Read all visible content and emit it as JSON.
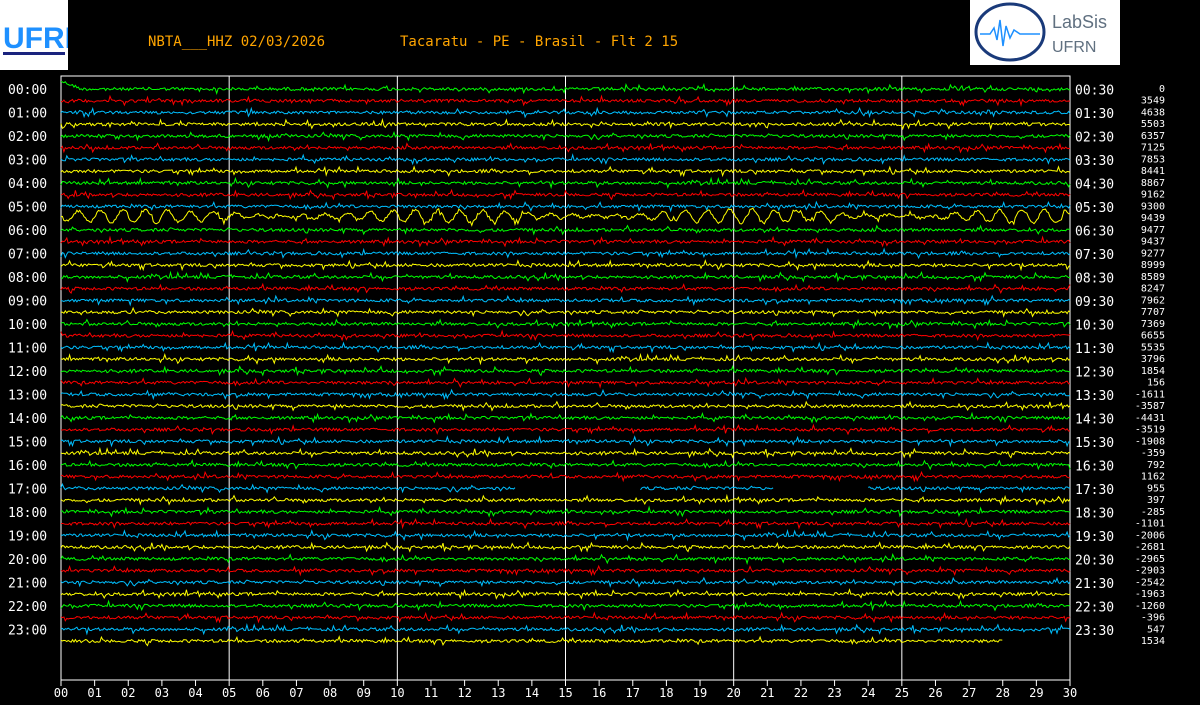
{
  "header": {
    "station": "NBTA___HHZ 02/03/2026",
    "location": "Tacaratu - PE - Brasil - Flt 2 15",
    "logo_left_text": "UFRN",
    "logo_right_text": [
      "LabSis",
      "UFRN"
    ]
  },
  "colors": {
    "title": "#ffa500",
    "background": "#000000",
    "grid": "#ffffff",
    "trace_cycle": [
      "#00ff00",
      "#ff0000",
      "#00bfff",
      "#ffff00"
    ]
  },
  "chart_data": {
    "type": "line",
    "subtype": "helicorder",
    "title": "NBTA___HHZ 02/03/2026",
    "xlabel": "",
    "ylabel": "",
    "xlim": [
      0,
      30
    ],
    "x_ticks": [
      "00",
      "01",
      "02",
      "03",
      "04",
      "05",
      "06",
      "07",
      "08",
      "09",
      "10",
      "11",
      "12",
      "13",
      "14",
      "15",
      "16",
      "17",
      "18",
      "19",
      "20",
      "21",
      "22",
      "23",
      "24",
      "25",
      "26",
      "27",
      "28",
      "29",
      "30"
    ],
    "grid": "vertical lines every 5 minutes",
    "left_labels": [
      "00:00",
      "01:00",
      "02:00",
      "03:00",
      "04:00",
      "05:00",
      "06:00",
      "07:00",
      "08:00",
      "09:00",
      "10:00",
      "11:00",
      "12:00",
      "13:00",
      "14:00",
      "15:00",
      "16:00",
      "17:00",
      "18:00",
      "19:00",
      "20:00",
      "21:00",
      "22:00",
      "23:00"
    ],
    "right_labels": [
      "00:30",
      "01:30",
      "02:30",
      "03:30",
      "04:30",
      "05:30",
      "06:30",
      "07:30",
      "08:30",
      "09:30",
      "10:30",
      "11:30",
      "12:30",
      "13:30",
      "14:30",
      "15:30",
      "16:30",
      "17:30",
      "18:30",
      "19:30",
      "20:30",
      "21:30",
      "22:30",
      "23:30"
    ],
    "offsets": [
      0,
      3549,
      4638,
      5503,
      6357,
      7125,
      7853,
      8441,
      8867,
      9162,
      9300,
      9439,
      9477,
      9437,
      9277,
      8999,
      8589,
      8247,
      7962,
      7707,
      7369,
      6655,
      5535,
      3796,
      1854,
      156,
      -1611,
      -3587,
      -4431,
      -3519,
      -1908,
      -359,
      792,
      1162,
      955,
      397,
      -285,
      -1101,
      -2006,
      -2681,
      -2965,
      -2903,
      -2542,
      -1963,
      -1260,
      -396,
      547,
      1534
    ],
    "notes_visible": {
      "large_oscillation_trace": "05:30",
      "gapped_trace": "17:00",
      "last_trace_end_minute": 28
    }
  }
}
